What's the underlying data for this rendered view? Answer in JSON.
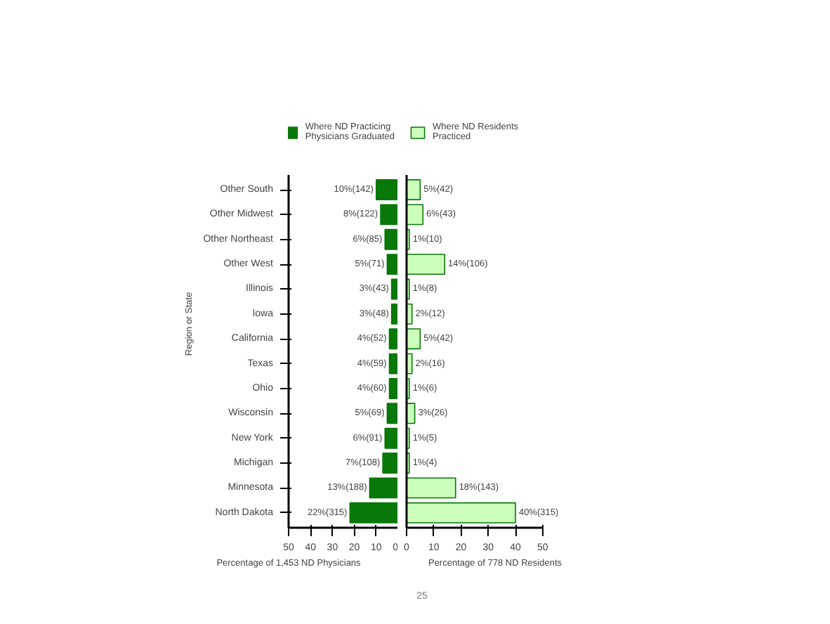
{
  "chart_data": [
    {
      "type": "bar",
      "orientation": "horizontal",
      "ylabel": "Region or State",
      "xlabel": "Percentage of 1,453 ND Physicians",
      "categories": [
        "Other South",
        "Other Midwest",
        "Other Northeast",
        "Other West",
        "Illinois",
        "Iowa",
        "California",
        "Texas",
        "Ohio",
        "Wisconsin",
        "New York",
        "Michigan",
        "Minnesota",
        "North Dakota"
      ],
      "series": [
        {
          "name": "Where ND Practicing Physicians Graduated",
          "color": "#087808",
          "values": [
            10,
            8,
            6,
            5,
            3,
            3,
            4,
            4,
            4,
            5,
            6,
            7,
            13,
            22
          ],
          "value_labels": [
            "10%(142)",
            "8%(122)",
            "6%(85)",
            "5%(71)",
            "3%(43)",
            "3%(48)",
            "4%(52)",
            "4%(59)",
            "4%(60)",
            "5%(69)",
            "6%(91)",
            "7%(108)",
            "13%(188)",
            "22%(315)"
          ]
        }
      ],
      "xlim": [
        50,
        0
      ],
      "xticks": [
        50,
        40,
        30,
        20,
        10,
        0
      ],
      "grid": false,
      "legend": "top"
    },
    {
      "type": "bar",
      "orientation": "horizontal",
      "xlabel": "Percentage of 778 ND Residents",
      "categories": [
        null,
        null,
        null,
        null,
        null,
        null,
        null,
        null,
        null,
        null,
        null,
        null,
        null,
        null
      ],
      "series": [
        {
          "name": "Where ND Residents Practiced",
          "color": "#ccffbb",
          "values": [
            5,
            6,
            1,
            14,
            1,
            2,
            5,
            2,
            1,
            3,
            1,
            1,
            18,
            40
          ],
          "value_labels": [
            "5%(42)",
            "6%(43)",
            "1%(10)",
            "14%(106)",
            "1%(8)",
            "2%(12)",
            "5%(42)",
            "2%(16)",
            "1%(6)",
            "3%(26)",
            "1%(5)",
            "1%(4)",
            "18%(143)",
            "40%(315)"
          ]
        }
      ],
      "xlim": [
        0,
        50
      ],
      "xticks": [
        0,
        10,
        20,
        30,
        40,
        50
      ],
      "grid": false,
      "legend": "top",
      "annotations": [
        "25"
      ]
    }
  ]
}
